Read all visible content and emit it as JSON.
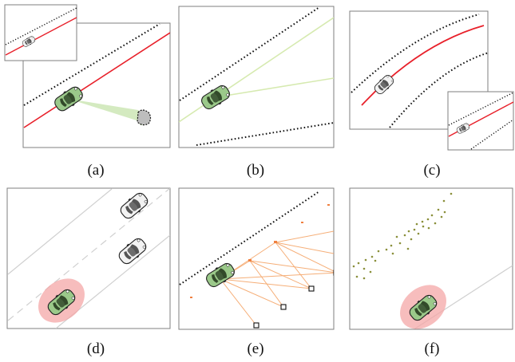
{
  "panels": [
    {
      "id": "a",
      "label": "(a)"
    },
    {
      "id": "b",
      "label": "(b)"
    },
    {
      "id": "c",
      "label": "(c)"
    },
    {
      "id": "d",
      "label": "(d)"
    },
    {
      "id": "e",
      "label": "(e)"
    },
    {
      "id": "f",
      "label": "(f)"
    }
  ],
  "colors": {
    "frame": "#7f7f7f",
    "ego_body": "#9bc98a",
    "ego_dark": "#334a2a",
    "other_body": "#f2f2f2",
    "other_dark": "#555555",
    "path_red": "#e8202a",
    "fov_green": "#cfe8b9",
    "ray_green": "#d6eab0",
    "boundary": "#111111",
    "lane_grey": "#cfcfcf",
    "risk_pink": "#f4a7a7",
    "edge_orange": "#f4a060",
    "point_olive": "#8a8f3a"
  }
}
